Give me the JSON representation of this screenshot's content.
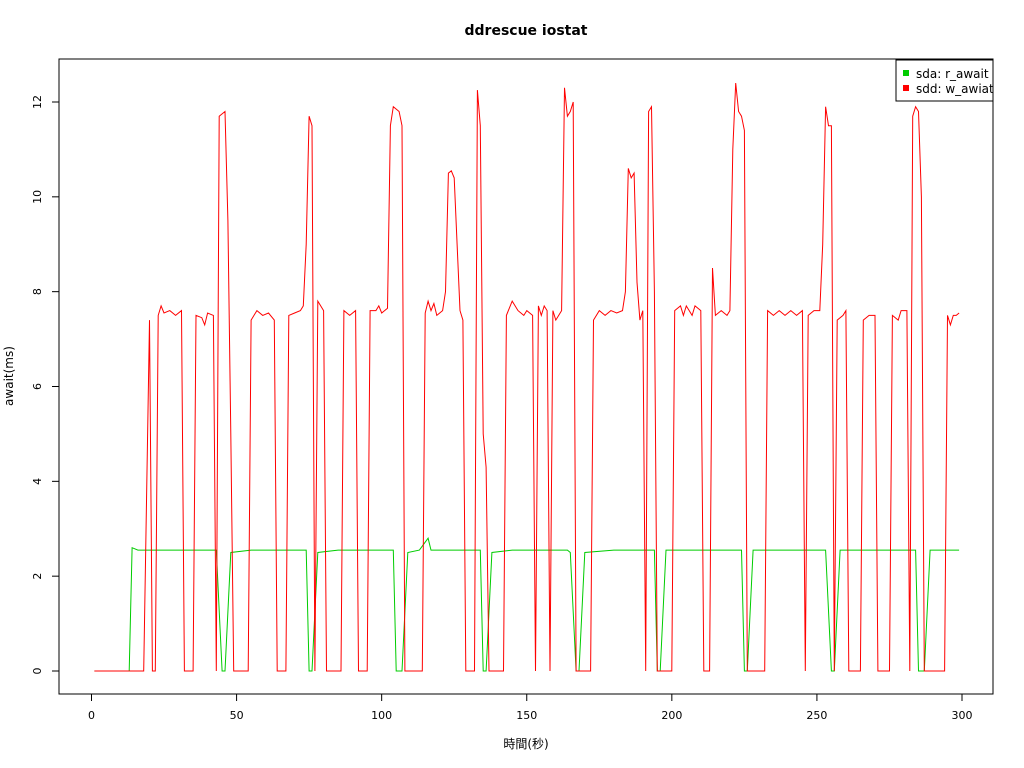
{
  "chart_data": {
    "type": "line",
    "title": "ddrescue iostat",
    "xlabel": "時間(秒)",
    "ylabel": "await(ms)",
    "xlim": [
      0,
      300
    ],
    "ylim": [
      0,
      12.5
    ],
    "xticks": [
      0,
      50,
      100,
      150,
      200,
      250,
      300
    ],
    "yticks": [
      0,
      2,
      4,
      6,
      8,
      10,
      12
    ],
    "grid": false,
    "legend_position": "top-right",
    "series": [
      {
        "name": "sda: r_await",
        "color": "#00cc00",
        "points": [
          [
            1,
            0
          ],
          [
            13,
            0
          ],
          [
            14,
            2.6
          ],
          [
            16,
            2.55
          ],
          [
            20,
            2.55
          ],
          [
            30,
            2.55
          ],
          [
            40,
            2.55
          ],
          [
            43,
            2.55
          ],
          [
            45,
            0
          ],
          [
            46,
            0
          ],
          [
            48,
            2.5
          ],
          [
            55,
            2.55
          ],
          [
            65,
            2.55
          ],
          [
            74,
            2.55
          ],
          [
            75,
            0
          ],
          [
            76,
            0
          ],
          [
            78,
            2.5
          ],
          [
            85,
            2.55
          ],
          [
            95,
            2.55
          ],
          [
            104,
            2.55
          ],
          [
            105,
            0
          ],
          [
            107,
            0
          ],
          [
            109,
            2.5
          ],
          [
            113,
            2.55
          ],
          [
            116,
            2.8
          ],
          [
            117,
            2.55
          ],
          [
            125,
            2.55
          ],
          [
            134,
            2.55
          ],
          [
            135,
            0
          ],
          [
            136,
            0
          ],
          [
            138,
            2.5
          ],
          [
            145,
            2.55
          ],
          [
            155,
            2.55
          ],
          [
            164,
            2.55
          ],
          [
            165,
            2.5
          ],
          [
            167,
            0
          ],
          [
            168,
            0
          ],
          [
            170,
            2.5
          ],
          [
            180,
            2.55
          ],
          [
            194,
            2.55
          ],
          [
            195,
            0
          ],
          [
            196,
            0
          ],
          [
            198,
            2.55
          ],
          [
            210,
            2.55
          ],
          [
            224,
            2.55
          ],
          [
            225,
            0
          ],
          [
            226,
            0
          ],
          [
            228,
            2.55
          ],
          [
            240,
            2.55
          ],
          [
            253,
            2.55
          ],
          [
            255,
            0
          ],
          [
            256,
            0
          ],
          [
            258,
            2.55
          ],
          [
            270,
            2.55
          ],
          [
            284,
            2.55
          ],
          [
            285,
            0
          ],
          [
            287,
            0
          ],
          [
            289,
            2.55
          ],
          [
            295,
            2.55
          ],
          [
            299,
            2.55
          ]
        ]
      },
      {
        "name": "sdd: w_awiat",
        "color": "#ff0000",
        "points": [
          [
            1,
            0
          ],
          [
            18,
            0
          ],
          [
            20,
            7.4
          ],
          [
            21,
            0
          ],
          [
            22,
            0
          ],
          [
            23,
            7.5
          ],
          [
            24,
            7.7
          ],
          [
            25,
            7.55
          ],
          [
            27,
            7.6
          ],
          [
            29,
            7.5
          ],
          [
            31,
            7.6
          ],
          [
            32,
            0
          ],
          [
            35,
            0
          ],
          [
            36,
            7.5
          ],
          [
            38,
            7.45
          ],
          [
            39,
            7.3
          ],
          [
            40,
            7.55
          ],
          [
            42,
            7.5
          ],
          [
            43,
            0
          ],
          [
            44,
            11.7
          ],
          [
            46,
            11.8
          ],
          [
            47,
            9.5
          ],
          [
            48,
            5
          ],
          [
            49,
            0
          ],
          [
            54,
            0
          ],
          [
            55,
            7.4
          ],
          [
            57,
            7.6
          ],
          [
            59,
            7.5
          ],
          [
            61,
            7.55
          ],
          [
            63,
            7.4
          ],
          [
            64,
            0
          ],
          [
            67,
            0
          ],
          [
            68,
            7.5
          ],
          [
            70,
            7.55
          ],
          [
            72,
            7.6
          ],
          [
            73,
            7.7
          ],
          [
            74,
            9
          ],
          [
            75,
            11.7
          ],
          [
            76,
            11.5
          ],
          [
            77,
            0
          ],
          [
            78,
            7.8
          ],
          [
            80,
            7.6
          ],
          [
            81,
            0
          ],
          [
            86,
            0
          ],
          [
            87,
            7.6
          ],
          [
            89,
            7.5
          ],
          [
            91,
            7.6
          ],
          [
            92,
            0
          ],
          [
            95,
            0
          ],
          [
            96,
            7.6
          ],
          [
            98,
            7.6
          ],
          [
            99,
            7.7
          ],
          [
            100,
            7.55
          ],
          [
            101,
            7.6
          ],
          [
            102,
            7.65
          ],
          [
            103,
            11.5
          ],
          [
            104,
            11.9
          ],
          [
            106,
            11.8
          ],
          [
            107,
            11.5
          ],
          [
            108,
            0
          ],
          [
            114,
            0
          ],
          [
            115,
            7.55
          ],
          [
            116,
            7.8
          ],
          [
            117,
            7.6
          ],
          [
            118,
            7.75
          ],
          [
            119,
            7.5
          ],
          [
            121,
            7.6
          ],
          [
            122,
            8
          ],
          [
            123,
            10.5
          ],
          [
            124,
            10.55
          ],
          [
            125,
            10.4
          ],
          [
            126,
            9
          ],
          [
            127,
            7.6
          ],
          [
            128,
            7.4
          ],
          [
            129,
            0
          ],
          [
            132,
            0
          ],
          [
            133,
            12.25
          ],
          [
            134,
            11.5
          ],
          [
            135,
            5
          ],
          [
            136,
            4.3
          ],
          [
            137,
            0
          ],
          [
            142,
            0
          ],
          [
            143,
            7.5
          ],
          [
            145,
            7.8
          ],
          [
            147,
            7.6
          ],
          [
            149,
            7.5
          ],
          [
            150,
            7.6
          ],
          [
            152,
            7.5
          ],
          [
            153,
            0
          ],
          [
            154,
            7.7
          ],
          [
            155,
            7.5
          ],
          [
            156,
            7.7
          ],
          [
            157,
            7.6
          ],
          [
            158,
            0
          ],
          [
            159,
            7.6
          ],
          [
            160,
            7.4
          ],
          [
            161,
            7.5
          ],
          [
            162,
            7.6
          ],
          [
            163,
            12.3
          ],
          [
            164,
            11.7
          ],
          [
            165,
            11.8
          ],
          [
            166,
            12
          ],
          [
            167,
            0
          ],
          [
            172,
            0
          ],
          [
            173,
            7.4
          ],
          [
            175,
            7.6
          ],
          [
            177,
            7.5
          ],
          [
            179,
            7.6
          ],
          [
            181,
            7.55
          ],
          [
            183,
            7.6
          ],
          [
            184,
            8
          ],
          [
            185,
            10.6
          ],
          [
            186,
            10.4
          ],
          [
            187,
            10.5
          ],
          [
            188,
            8.2
          ],
          [
            189,
            7.4
          ],
          [
            190,
            7.6
          ],
          [
            191,
            0
          ],
          [
            192,
            11.8
          ],
          [
            193,
            11.9
          ],
          [
            194,
            8
          ],
          [
            195,
            0
          ],
          [
            200,
            0
          ],
          [
            201,
            7.6
          ],
          [
            203,
            7.7
          ],
          [
            204,
            7.5
          ],
          [
            205,
            7.7
          ],
          [
            206,
            7.6
          ],
          [
            207,
            7.5
          ],
          [
            208,
            7.7
          ],
          [
            210,
            7.6
          ],
          [
            211,
            0
          ],
          [
            213,
            0
          ],
          [
            214,
            8.5
          ],
          [
            215,
            7.5
          ],
          [
            217,
            7.6
          ],
          [
            219,
            7.5
          ],
          [
            220,
            7.6
          ],
          [
            221,
            11
          ],
          [
            222,
            12.4
          ],
          [
            223,
            11.8
          ],
          [
            224,
            11.7
          ],
          [
            225,
            11.4
          ],
          [
            226,
            0
          ],
          [
            232,
            0
          ],
          [
            233,
            7.6
          ],
          [
            235,
            7.5
          ],
          [
            237,
            7.6
          ],
          [
            239,
            7.5
          ],
          [
            241,
            7.6
          ],
          [
            243,
            7.5
          ],
          [
            245,
            7.6
          ],
          [
            246,
            0
          ],
          [
            247,
            7.5
          ],
          [
            249,
            7.6
          ],
          [
            251,
            7.6
          ],
          [
            252,
            9
          ],
          [
            253,
            11.9
          ],
          [
            254,
            11.5
          ],
          [
            255,
            11.5
          ],
          [
            256,
            0
          ],
          [
            257,
            7.4
          ],
          [
            259,
            7.5
          ],
          [
            260,
            7.6
          ],
          [
            261,
            0
          ],
          [
            265,
            0
          ],
          [
            266,
            7.4
          ],
          [
            268,
            7.5
          ],
          [
            270,
            7.5
          ],
          [
            271,
            0
          ],
          [
            275,
            0
          ],
          [
            276,
            7.5
          ],
          [
            278,
            7.4
          ],
          [
            279,
            7.6
          ],
          [
            281,
            7.6
          ],
          [
            282,
            0
          ],
          [
            283,
            11.7
          ],
          [
            284,
            11.9
          ],
          [
            285,
            11.8
          ],
          [
            286,
            10
          ],
          [
            287,
            0
          ],
          [
            294,
            0
          ],
          [
            295,
            7.5
          ],
          [
            296,
            7.3
          ],
          [
            297,
            7.5
          ],
          [
            298,
            7.5
          ],
          [
            299,
            7.55
          ]
        ]
      }
    ]
  }
}
